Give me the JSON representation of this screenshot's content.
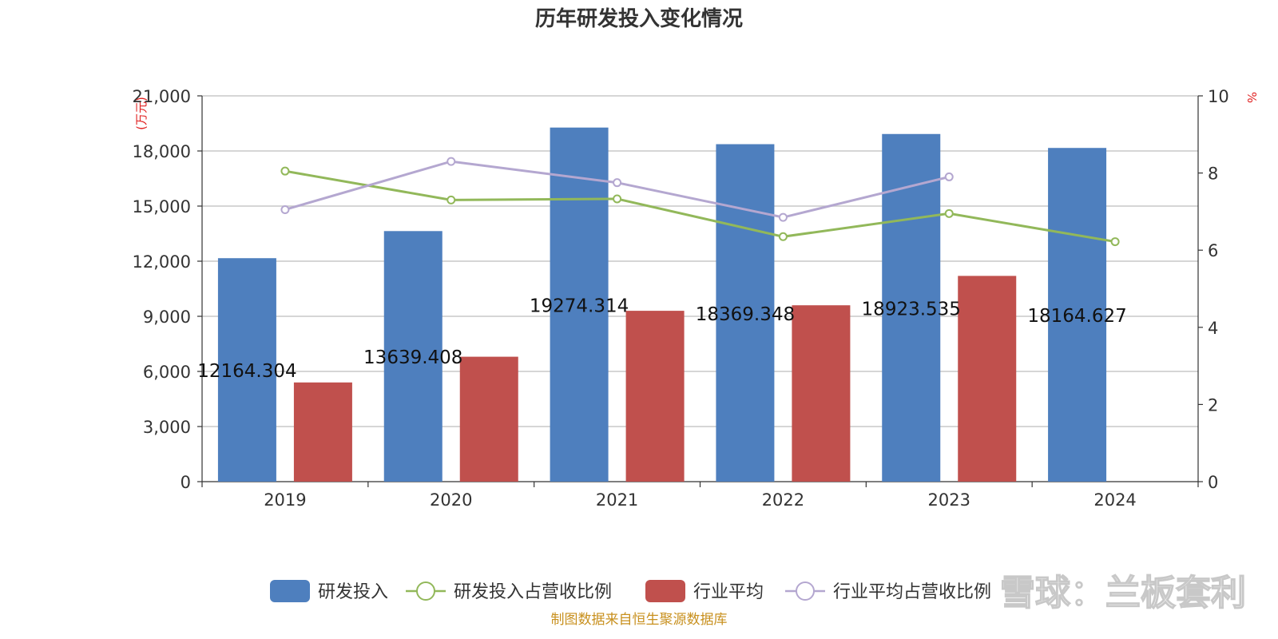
{
  "chart_data": {
    "type": "bar",
    "title": "历年研发投入变化情况",
    "categories": [
      "2019",
      "2020",
      "2021",
      "2022",
      "2023",
      "2024"
    ],
    "left_axis": {
      "unit": "(万元)",
      "ylim": [
        0,
        21000
      ],
      "ticks": [
        0,
        3000,
        6000,
        9000,
        12000,
        15000,
        18000,
        21000
      ],
      "tick_labels": [
        "0",
        "3,000",
        "6,000",
        "9,000",
        "12,000",
        "15,000",
        "18,000",
        "21,000"
      ]
    },
    "right_axis": {
      "unit": "%",
      "ylim": [
        0,
        10
      ],
      "ticks": [
        0,
        2,
        4,
        6,
        8,
        10
      ],
      "tick_labels": [
        "0",
        "2",
        "4",
        "6",
        "8",
        "10"
      ]
    },
    "grid": true,
    "legend_position": "bottom",
    "series": [
      {
        "name": "研发投入",
        "kind": "bar",
        "axis": "left",
        "color": "#4e7fbe",
        "values": [
          12164.304,
          13639.408,
          19274.314,
          18369.348,
          18923.535,
          18164.627
        ],
        "labels": [
          "12164.304",
          "13639.408",
          "19274.314",
          "18369.348",
          "18923.535",
          "18164.627"
        ]
      },
      {
        "name": "研发投入占营收比例",
        "kind": "line",
        "axis": "right",
        "color": "#92b85a",
        "values": [
          8.05,
          7.3,
          7.33,
          6.35,
          6.95,
          6.22
        ]
      },
      {
        "name": "行业平均",
        "kind": "bar",
        "axis": "left",
        "color": "#c0504d",
        "values": [
          5400,
          6800,
          9300,
          9600,
          11200,
          null
        ]
      },
      {
        "name": "行业平均占营收比例",
        "kind": "line",
        "axis": "right",
        "color": "#b4a7d0",
        "values": [
          7.05,
          8.3,
          7.75,
          6.85,
          7.9,
          null
        ]
      }
    ]
  },
  "footer": {
    "source": "制图数据来自恒生聚源数据库",
    "watermark": "雪球：兰板套利"
  }
}
